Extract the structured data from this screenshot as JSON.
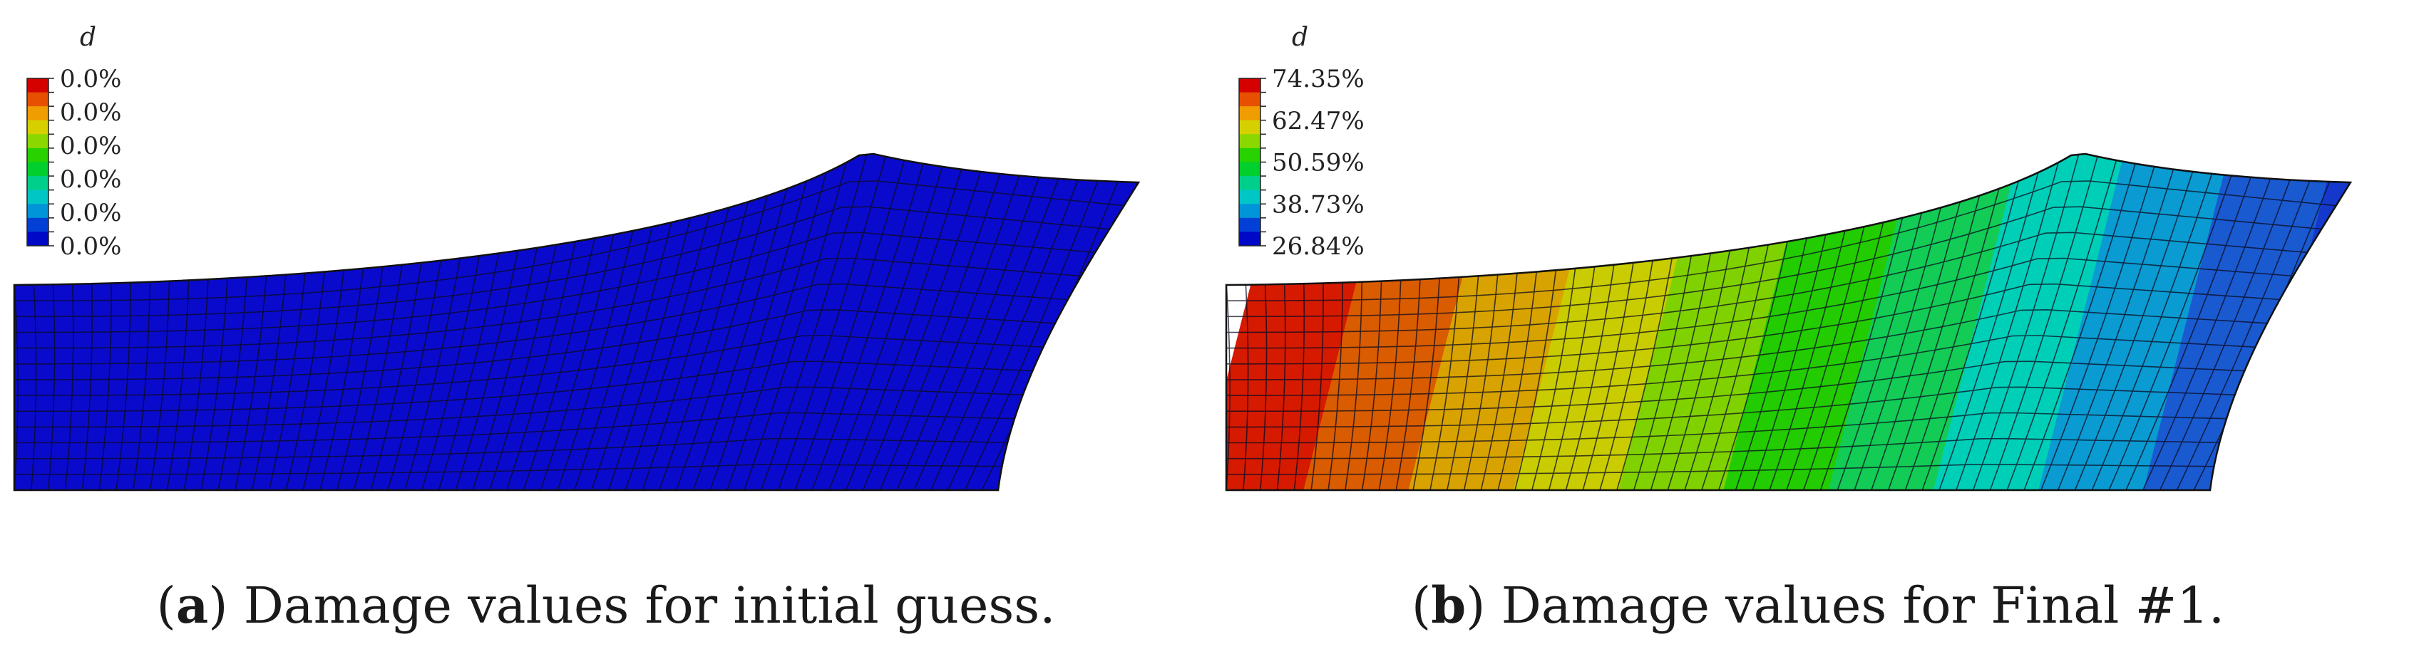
{
  "panels": [
    {
      "id": "a",
      "legend": {
        "variable": "d",
        "labels": [
          "0.0%",
          "0.0%",
          "0.0%",
          "0.0%",
          "0.0%",
          "0.0%"
        ],
        "colors": [
          "#d50000",
          "#e65000",
          "#ef9d00",
          "#d6d000",
          "#8ad800",
          "#28d100",
          "#00cf2e",
          "#00cf8c",
          "#00c6c6",
          "#0094d8",
          "#0040d4",
          "#0008c8"
        ]
      },
      "bands": [
        "#0a0acd"
      ],
      "caption": {
        "letter": "a",
        "text": "Damage values for initial guess."
      }
    },
    {
      "id": "b",
      "legend": {
        "variable": "d",
        "labels": [
          "74.35%",
          "62.47%",
          "50.59%",
          "38.73%",
          "26.84%"
        ],
        "colors": [
          "#d50000",
          "#e65000",
          "#ef9d00",
          "#d6d000",
          "#8ad800",
          "#28d100",
          "#00cf2e",
          "#00cf8c",
          "#00c6c6",
          "#0094d8",
          "#0040d4",
          "#0008c8"
        ]
      },
      "bands": [
        "#d51a00",
        "#d95c00",
        "#d8a300",
        "#c9cc00",
        "#7fd200",
        "#22cc00",
        "#12cc55",
        "#00cfb8",
        "#0a9bd2",
        "#1a5ad0",
        "#1438cc"
      ],
      "caption": {
        "letter": "b",
        "text": "Damage values for Final #1."
      }
    }
  ]
}
